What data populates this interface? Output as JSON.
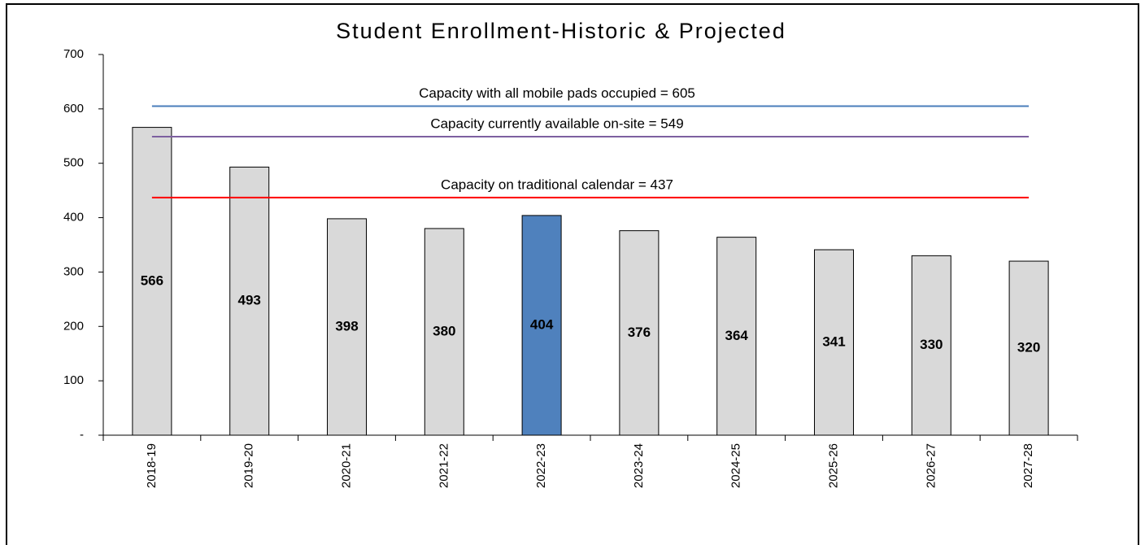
{
  "chart_data": {
    "type": "bar",
    "title": "Student Enrollment-Historic & Projected",
    "categories": [
      "2018-19",
      "2019-20",
      "2020-21",
      "2021-22",
      "2022-23",
      "2023-24",
      "2024-25",
      "2025-26",
      "2026-27",
      "2027-28"
    ],
    "values": [
      566,
      493,
      398,
      380,
      404,
      376,
      364,
      341,
      330,
      320
    ],
    "colors": [
      "#d9d9d9",
      "#d9d9d9",
      "#d9d9d9",
      "#d9d9d9",
      "#4f81bd",
      "#d9d9d9",
      "#d9d9d9",
      "#d9d9d9",
      "#d9d9d9",
      "#d9d9d9"
    ],
    "ylim": [
      0,
      700
    ],
    "yticks": [
      {
        "value": 0,
        "label": "-"
      },
      100,
      200,
      300,
      400,
      500,
      600,
      700
    ],
    "reference_lines": [
      {
        "value": 605,
        "label": "Capacity with all mobile pads occupied = 605",
        "color": "#4a7ebb"
      },
      {
        "value": 549,
        "label": "Capacity currently available on-site = 549",
        "color": "#7d60a0"
      },
      {
        "value": 437,
        "label": "Capacity on traditional calendar = 437",
        "color": "#ff0000"
      }
    ]
  }
}
